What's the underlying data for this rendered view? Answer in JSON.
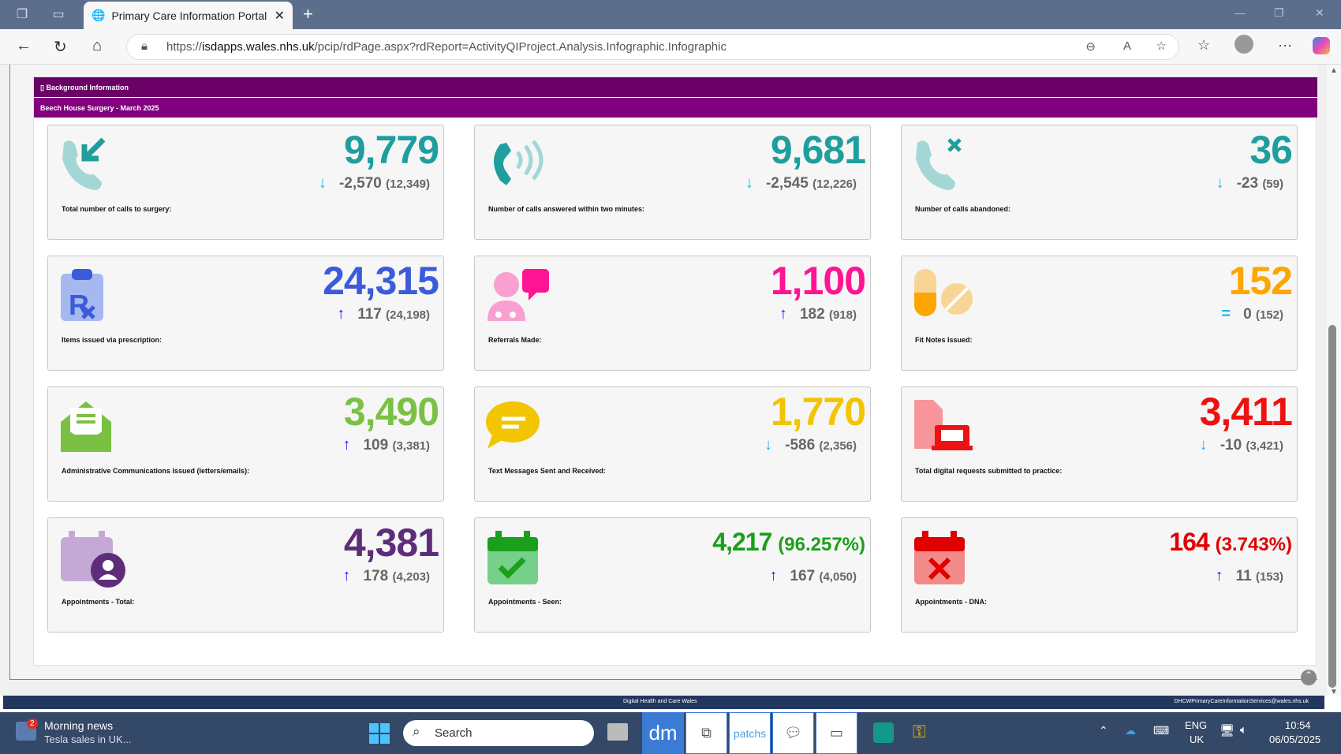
{
  "browser": {
    "tab_title": "Primary Care Information Portal",
    "url_domain": "isdapps.wales.nhs.uk",
    "url_path": "/pcip/rdPage.aspx?rdReport=ActivityQIProject.Analysis.Infographic.Infographic"
  },
  "header": {
    "section": "Background Information",
    "subtitle": "Beech House Surgery - March 2025"
  },
  "colors": {
    "header": "#6b0066",
    "subheader": "#820080",
    "up": "#1a1aff",
    "down": "#1fb7e8",
    "equal": "#1fb7e8"
  },
  "cards": [
    {
      "icon": "phone-incoming",
      "label": "Total number of calls to surgery:",
      "value": "9,779",
      "pct": "",
      "color": "#1f9e9e",
      "trend": "down",
      "change": "-2,570",
      "previous": "(12,349)"
    },
    {
      "icon": "phone-ringing",
      "label": "Number of calls answered within two minutes:",
      "value": "9,681",
      "pct": "",
      "color": "#1f9e9e",
      "trend": "down",
      "change": "-2,545",
      "previous": "(12,226)"
    },
    {
      "icon": "phone-missed",
      "label": "Number of calls abandoned:",
      "value": "36",
      "pct": "",
      "color": "#1f9e9e",
      "trend": "down",
      "change": "-23",
      "previous": "(59)"
    },
    {
      "icon": "prescription",
      "label": "Items issued via prescription:",
      "value": "24,315",
      "pct": "",
      "color": "#3b5bdb",
      "trend": "up",
      "change": "117",
      "previous": "(24,198)"
    },
    {
      "icon": "doctor-chat",
      "label": "Referrals Made:",
      "value": "1,100",
      "pct": "",
      "color": "#ff1493",
      "trend": "up",
      "change": "182",
      "previous": "(918)"
    },
    {
      "icon": "pills",
      "label": "Fit Notes Issued:",
      "value": "152",
      "pct": "",
      "color": "#ffa500",
      "trend": "equal",
      "change": "0",
      "previous": "(152)"
    },
    {
      "icon": "envelope",
      "label": "Administrative Communications Issued (letters/emails):",
      "value": "3,490",
      "pct": "",
      "color": "#7ac143",
      "trend": "up",
      "change": "109",
      "previous": "(3,381)"
    },
    {
      "icon": "speech-bubble",
      "label": "Text Messages Sent and Received:",
      "value": "1,770",
      "pct": "",
      "color": "#f2c500",
      "trend": "down",
      "change": "-586",
      "previous": "(2,356)"
    },
    {
      "icon": "digital-request",
      "label": "Total digital requests submitted to practice:",
      "value": "3,411",
      "pct": "",
      "color": "#ee1111",
      "trend": "down",
      "change": "-10",
      "previous": "(3,421)"
    },
    {
      "icon": "calendar-user",
      "label": "Appointments - Total:",
      "value": "4,381",
      "pct": "",
      "color": "#5e2d79",
      "trend": "up",
      "change": "178",
      "previous": "(4,203)"
    },
    {
      "icon": "calendar-check",
      "label": "Appointments - Seen:",
      "value": "4,217",
      "pct": "(96.257%)",
      "color": "#1aa01a",
      "trend": "up",
      "change": "167",
      "previous": "(4,050)"
    },
    {
      "icon": "calendar-cross",
      "label": "Appointments - DNA:",
      "value": "164",
      "pct": "(3.743%)",
      "color": "#e00000",
      "trend": "up",
      "change": "11",
      "previous": "(153)"
    }
  ],
  "footer": {
    "left": "Digital Health and Care Wales",
    "right": "DHCWPrimaryCareInformationServices@wales.nhs.uk"
  },
  "taskbar": {
    "news_title": "Morning news",
    "news_sub": "Tesla sales in UK...",
    "news_badge": "2",
    "search": "Search",
    "lang": "ENG",
    "region": "UK",
    "time": "10:54",
    "date": "06/05/2025",
    "patchs": "patchs",
    "dm": "dm"
  }
}
